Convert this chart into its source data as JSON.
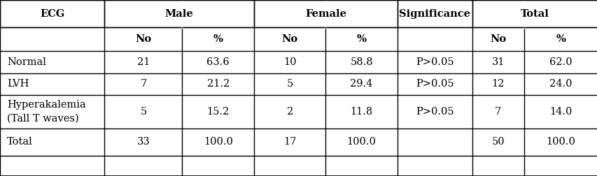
{
  "col_headers_row1": [
    "ECG",
    "Male",
    "Female",
    "Significance",
    "Total"
  ],
  "col_headers_row2": [
    "",
    "No",
    "%",
    "No",
    "%",
    "",
    "No",
    "%"
  ],
  "rows": [
    [
      "Normal",
      "21",
      "63.6",
      "10",
      "58.8",
      "P>0.05",
      "31",
      "62.0"
    ],
    [
      "LVH",
      "7",
      "21.2",
      "5",
      "29.4",
      "P>0.05",
      "12",
      "24.0"
    ],
    [
      "Hyperakalemia\n(Tall T waves)",
      "5",
      "15.2",
      "2",
      "11.8",
      "P>0.05",
      "7",
      "14.0"
    ],
    [
      "Total",
      "33",
      "100.0",
      "17",
      "100.0",
      "",
      "50",
      "100.0"
    ]
  ],
  "col_bounds": [
    0.0,
    0.175,
    0.305,
    0.425,
    0.545,
    0.665,
    0.79,
    0.877,
    1.0
  ],
  "row_tops": [
    1.0,
    0.845,
    0.71,
    0.585,
    0.46,
    0.27,
    0.115
  ],
  "row_bottoms": [
    0.845,
    0.71,
    0.585,
    0.46,
    0.27,
    0.115,
    0.0
  ],
  "background_color": "#ffffff",
  "font_size": 10.5,
  "header_font_size": 10.5
}
